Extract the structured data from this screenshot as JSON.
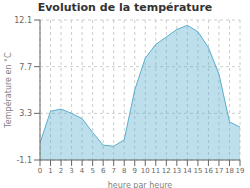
{
  "chart_data": {
    "type": "area",
    "title": "Evolution de la température",
    "xlabel": "heure par heure",
    "ylabel": "Température en °C",
    "x": [
      0,
      1,
      2,
      3,
      4,
      5,
      6,
      7,
      8,
      9,
      10,
      11,
      12,
      13,
      14,
      15,
      16,
      17,
      18,
      19
    ],
    "values": [
      0.5,
      3.5,
      3.7,
      3.3,
      2.8,
      1.5,
      0.3,
      0.2,
      0.8,
      5.5,
      8.5,
      9.8,
      10.5,
      11.2,
      11.6,
      11.0,
      9.5,
      7.0,
      2.5,
      2.0
    ],
    "color": "#5aafcc",
    "xlim": [
      0,
      19
    ],
    "ylim": [
      -1.1,
      12.1
    ],
    "xticks": [
      0,
      1,
      2,
      3,
      4,
      5,
      6,
      7,
      8,
      9,
      10,
      11,
      12,
      13,
      14,
      15,
      16,
      17,
      18,
      19
    ],
    "yticks": [
      -1.1,
      3.3,
      7.7,
      12.1
    ],
    "grid": true
  }
}
